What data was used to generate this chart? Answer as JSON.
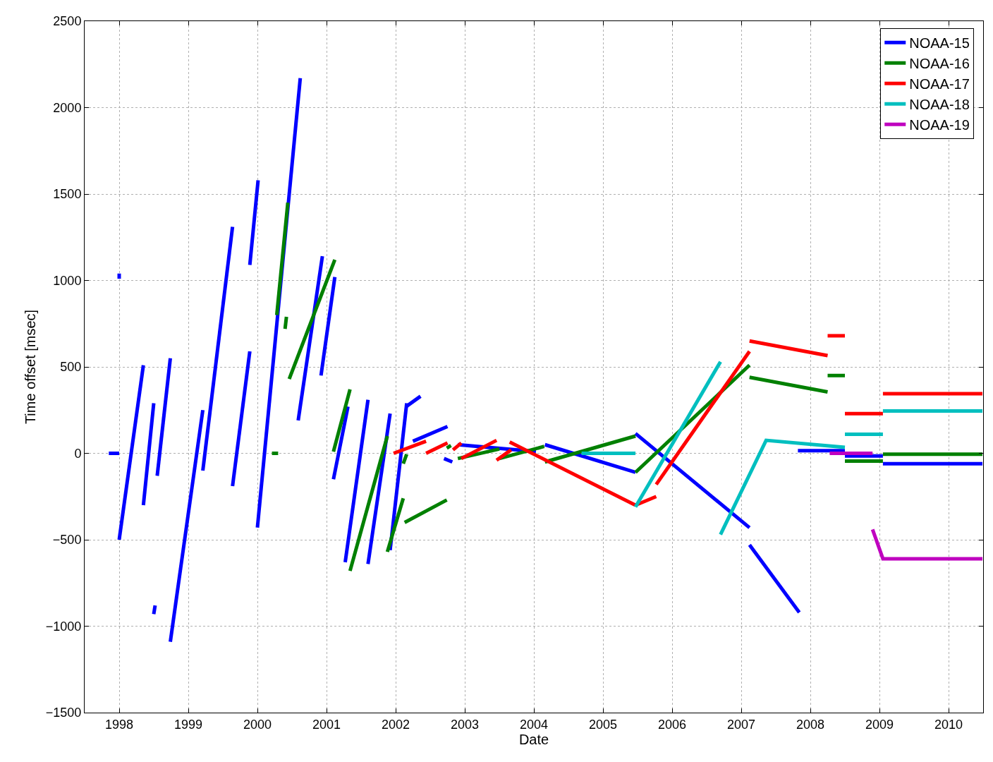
{
  "chart_data": {
    "type": "line",
    "xlabel": "Date",
    "ylabel": "Time offset [msec]",
    "xlim": [
      1997.5,
      2010.5
    ],
    "ylim": [
      -1500,
      2500
    ],
    "xticks": [
      1998,
      1999,
      2000,
      2001,
      2002,
      2003,
      2004,
      2005,
      2006,
      2007,
      2008,
      2009,
      2010
    ],
    "yticks": [
      -1500,
      -1000,
      -500,
      0,
      500,
      1000,
      1500,
      2000,
      2500
    ],
    "grid": true,
    "legend": "top right",
    "line_style": "solid",
    "marker": "none",
    "series": [
      {
        "name": "NOAA-15",
        "color": "#0000ff",
        "x": [
          1997.85,
          1998.0,
          null,
          1998.0,
          1998.0,
          null,
          1998.0,
          1998.35,
          null,
          1998.35,
          1998.5,
          null,
          1998.5,
          1998.52,
          null,
          1998.55,
          1998.74,
          null,
          1998.74,
          1999.21,
          null,
          1999.21,
          1999.64,
          null,
          1999.64,
          1999.89,
          null,
          1999.89,
          2000.01,
          null,
          2000.0,
          2000.62,
          null,
          2000.59,
          2000.94,
          null,
          2000.92,
          2001.12,
          null,
          2001.1,
          2001.31,
          null,
          2001.27,
          2001.6,
          null,
          2001.6,
          2001.92,
          null,
          2001.92,
          2002.16,
          null,
          2002.15,
          2002.36,
          null,
          2002.25,
          2002.75,
          null,
          2002.7,
          2002.82,
          null,
          2002.9,
          2004.03,
          null,
          2004.16,
          2005.47,
          null,
          2005.47,
          2007.12,
          null,
          2007.12,
          2007.84,
          null,
          2007.82,
          2008.5,
          null,
          2008.5,
          2009.05,
          null,
          2009.05,
          2010.49
        ],
        "values": [
          0,
          0,
          null,
          1010,
          1040,
          null,
          -500,
          510,
          null,
          -300,
          290,
          null,
          -930,
          -880,
          null,
          -130,
          550,
          null,
          -1090,
          250,
          null,
          -100,
          1310,
          null,
          -190,
          590,
          null,
          1090,
          1580,
          null,
          -430,
          2170,
          null,
          190,
          1140,
          null,
          450,
          1020,
          null,
          -150,
          270,
          null,
          -630,
          310,
          null,
          -640,
          230,
          null,
          -560,
          290,
          null,
          270,
          330,
          null,
          70,
          155,
          null,
          -30,
          -50,
          null,
          50,
          10,
          null,
          50,
          -110,
          null,
          115,
          -430,
          null,
          -530,
          -920,
          null,
          15,
          15,
          null,
          -15,
          -15,
          null,
          -60,
          -60
        ]
      },
      {
        "name": "NOAA-16",
        "color": "#008000",
        "x": [
          2000.21,
          2000.3,
          null,
          2000.28,
          2000.44,
          null,
          2000.4,
          2000.42,
          null,
          2000.46,
          2001.12,
          null,
          2001.1,
          2001.34,
          null,
          2001.34,
          2001.88,
          null,
          2001.88,
          2002.11,
          null,
          2002.11,
          2002.16,
          null,
          2002.13,
          2002.74,
          null,
          2002.74,
          2002.8,
          null,
          2002.9,
          2003.5,
          null,
          2003.5,
          2004.15,
          null,
          2004.16,
          2005.47,
          null,
          2005.47,
          2007.12,
          null,
          2007.12,
          2008.25,
          null,
          2008.25,
          2008.5,
          null,
          2008.5,
          2009.05,
          null,
          2009.05,
          2010.49
        ],
        "values": [
          0,
          0,
          null,
          800,
          1450,
          null,
          720,
          790,
          null,
          430,
          1120,
          null,
          10,
          370,
          null,
          -680,
          100,
          null,
          -570,
          -260,
          null,
          -60,
          -5,
          null,
          -400,
          -270,
          null,
          30,
          45,
          null,
          -30,
          25,
          null,
          -30,
          40,
          null,
          -50,
          100,
          null,
          -110,
          510,
          null,
          440,
          355,
          null,
          450,
          450,
          null,
          -45,
          -45,
          null,
          -5,
          -5
        ]
      },
      {
        "name": "NOAA-17",
        "color": "#ff0000",
        "x": [
          2001.97,
          2002.44,
          null,
          2002.44,
          2002.75,
          null,
          2002.83,
          2002.95,
          null,
          2002.95,
          2003.46,
          null,
          2003.46,
          2003.67,
          null,
          2003.65,
          2005.47,
          null,
          2005.47,
          2005.77,
          null,
          2005.77,
          2006.33,
          2007.12,
          null,
          2007.12,
          2008.25,
          null,
          2008.25,
          2008.5,
          null,
          2008.5,
          2009.05,
          null,
          2009.05,
          2010.49
        ],
        "values": [
          0,
          70,
          null,
          0,
          60,
          null,
          20,
          60,
          null,
          -30,
          75,
          null,
          -40,
          20,
          null,
          65,
          -300,
          null,
          -300,
          -250,
          null,
          -180,
          140,
          590,
          null,
          650,
          565,
          null,
          680,
          680,
          null,
          230,
          230,
          null,
          345,
          345
        ]
      },
      {
        "name": "NOAA-18",
        "color": "#00bfbf",
        "x": [
          2004.69,
          2005.47,
          null,
          2005.47,
          2006.7,
          null,
          2006.7,
          2007.36,
          2008.5,
          null,
          2008.5,
          2009.05,
          null,
          2009.05,
          2010.49
        ],
        "values": [
          0,
          0,
          null,
          -310,
          530,
          null,
          -470,
          75,
          35,
          null,
          110,
          110,
          null,
          245,
          245
        ]
      },
      {
        "name": "NOAA-19",
        "color": "#bf00bf",
        "x": [
          2008.28,
          2008.9,
          null,
          2008.9,
          2009.05,
          2010.49
        ],
        "values": [
          0,
          0,
          null,
          -440,
          -610,
          -610
        ]
      }
    ]
  }
}
